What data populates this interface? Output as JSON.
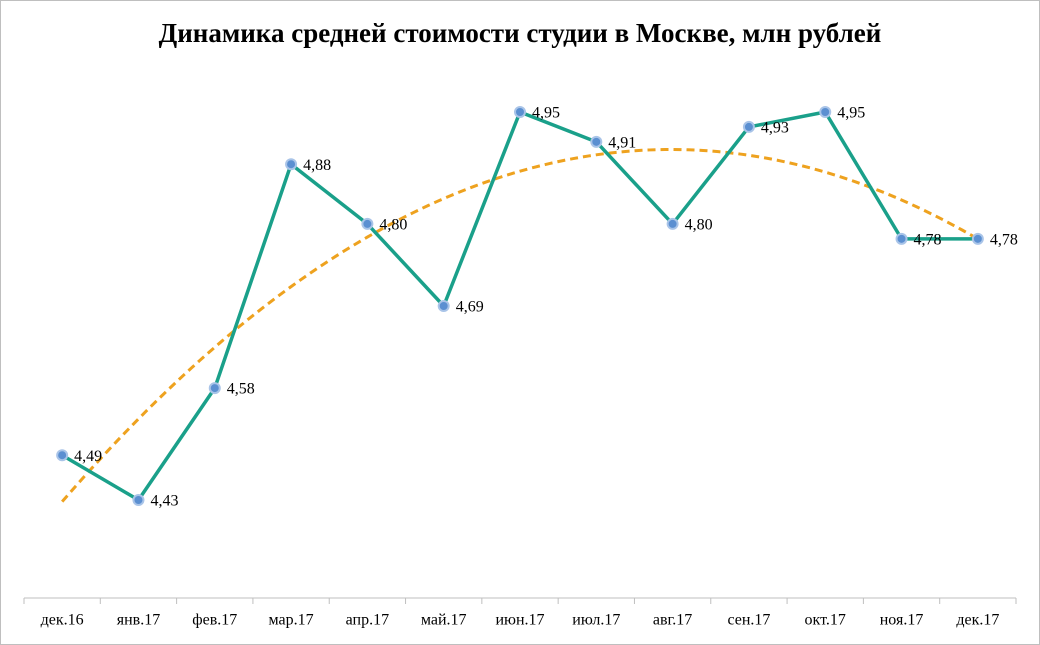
{
  "chart_data": {
    "type": "line",
    "title": "Динамика средней стоимости студии в Москве, млн рублей",
    "categories": [
      "дек.16",
      "янв.17",
      "фев.17",
      "мар.17",
      "апр.17",
      "май.17",
      "июн.17",
      "июл.17",
      "авг.17",
      "сен.17",
      "окт.17",
      "ноя.17",
      "дек.17"
    ],
    "values": [
      4.49,
      4.43,
      4.58,
      4.88,
      4.8,
      4.69,
      4.95,
      4.91,
      4.8,
      4.93,
      4.95,
      4.78,
      4.78
    ],
    "value_labels": [
      "4,49",
      "4,43",
      "4,58",
      "4,88",
      "4,80",
      "4,69",
      "4,95",
      "4,91",
      "4,80",
      "4,93",
      "4,95",
      "4,78",
      "4,78"
    ],
    "color": "#1aa08a",
    "marker_color": "#5b8fd1",
    "trendline": {
      "type": "polynomial",
      "order": 2,
      "color": "#eea21f"
    }
  }
}
